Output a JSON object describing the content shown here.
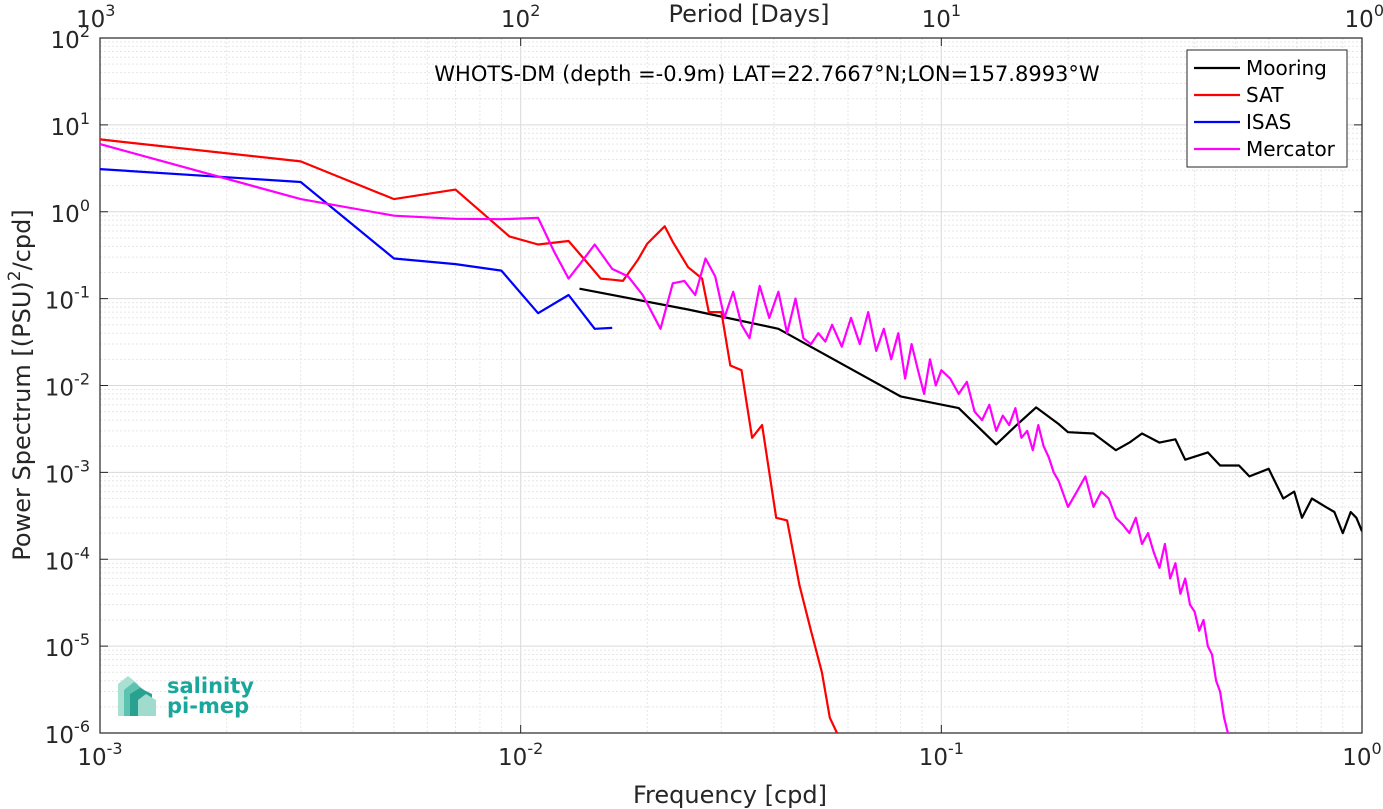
{
  "chart_data": {
    "type": "line",
    "title": "WHOTS-DM (depth =-0.9m) LAT=22.7667°N;LON=157.8993°W",
    "xlabel": "Frequency [cpd]",
    "ylabel_parts": [
      "Power Spectrum [(PSU)",
      "2",
      "/cpd]"
    ],
    "top_xlabel": "Period [Days]",
    "xscale": "log",
    "yscale": "log",
    "xlim": [
      0.001,
      1
    ],
    "ylim": [
      1e-06,
      100
    ],
    "grid": true,
    "legend_position": "top-right",
    "x_ticks": [
      {
        "base": "10",
        "exp": "-3",
        "value": 0.001
      },
      {
        "base": "10",
        "exp": "-2",
        "value": 0.01
      },
      {
        "base": "10",
        "exp": "-1",
        "value": 0.1
      },
      {
        "base": "10",
        "exp": "0",
        "value": 1
      }
    ],
    "top_ticks": [
      {
        "base": "10",
        "exp": "3",
        "value": 0.001
      },
      {
        "base": "10",
        "exp": "2",
        "value": 0.01
      },
      {
        "base": "10",
        "exp": "1",
        "value": 0.1
      },
      {
        "base": "10",
        "exp": "0",
        "value": 1
      }
    ],
    "y_ticks": [
      {
        "base": "10",
        "exp": "2",
        "value": 100
      },
      {
        "base": "10",
        "exp": "1",
        "value": 10
      },
      {
        "base": "10",
        "exp": "0",
        "value": 1
      },
      {
        "base": "10",
        "exp": "-1",
        "value": 0.1
      },
      {
        "base": "10",
        "exp": "-2",
        "value": 0.01
      },
      {
        "base": "10",
        "exp": "-3",
        "value": 0.001
      },
      {
        "base": "10",
        "exp": "-4",
        "value": 0.0001
      },
      {
        "base": "10",
        "exp": "-5",
        "value": 1e-05
      },
      {
        "base": "10",
        "exp": "-6",
        "value": 1e-06
      }
    ],
    "series": [
      {
        "name": "Mooring",
        "color": "#000000",
        "x": [
          0.0138,
          0.025,
          0.041,
          0.08,
          0.11,
          0.135,
          0.15,
          0.168,
          0.19,
          0.2,
          0.23,
          0.26,
          0.28,
          0.3,
          0.33,
          0.36,
          0.38,
          0.43,
          0.46,
          0.51,
          0.54,
          0.6,
          0.65,
          0.69,
          0.72,
          0.76,
          0.82,
          0.86,
          0.9,
          0.94,
          0.97,
          1.0
        ],
        "y": [
          0.13,
          0.075,
          0.045,
          0.0075,
          0.0055,
          0.0021,
          0.0034,
          0.0056,
          0.0036,
          0.0029,
          0.0028,
          0.0018,
          0.0022,
          0.0028,
          0.0022,
          0.0024,
          0.0014,
          0.0017,
          0.0012,
          0.0012,
          0.0009,
          0.0011,
          0.0005,
          0.0006,
          0.0003,
          0.0005,
          0.0004,
          0.00035,
          0.0002,
          0.00035,
          0.0003,
          0.00021
        ]
      },
      {
        "name": "SAT",
        "color": "#ff0000",
        "x": [
          0.001,
          0.003,
          0.005,
          0.007,
          0.0094,
          0.011,
          0.013,
          0.0145,
          0.0155,
          0.0165,
          0.0175,
          0.019,
          0.02,
          0.022,
          0.023,
          0.025,
          0.027,
          0.028,
          0.03,
          0.0315,
          0.0335,
          0.0355,
          0.0375,
          0.0405,
          0.043,
          0.046,
          0.049,
          0.052,
          0.0543,
          0.0565
        ],
        "y": [
          6.8,
          3.8,
          1.4,
          1.8,
          0.52,
          0.42,
          0.46,
          0.25,
          0.17,
          0.165,
          0.16,
          0.28,
          0.43,
          0.68,
          0.45,
          0.23,
          0.17,
          0.07,
          0.07,
          0.017,
          0.015,
          0.0025,
          0.0035,
          0.0003,
          0.00028,
          5e-05,
          1.5e-05,
          5e-06,
          1.5e-06,
          1e-06
        ]
      },
      {
        "name": "ISAS",
        "color": "#0000ff",
        "x": [
          0.001,
          0.003,
          0.005,
          0.007,
          0.009,
          0.011,
          0.013,
          0.015,
          0.0165
        ],
        "y": [
          3.1,
          2.2,
          0.29,
          0.25,
          0.21,
          0.068,
          0.11,
          0.045,
          0.046
        ]
      },
      {
        "name": "Mercator",
        "color": "#ff00ff",
        "x": [
          0.001,
          0.003,
          0.005,
          0.007,
          0.009,
          0.011,
          0.012,
          0.013,
          0.014,
          0.015,
          0.0165,
          0.018,
          0.0195,
          0.0215,
          0.023,
          0.0245,
          0.026,
          0.0275,
          0.029,
          0.0305,
          0.032,
          0.0335,
          0.035,
          0.037,
          0.039,
          0.041,
          0.043,
          0.045,
          0.047,
          0.049,
          0.051,
          0.053,
          0.055,
          0.058,
          0.061,
          0.064,
          0.067,
          0.07,
          0.073,
          0.076,
          0.079,
          0.082,
          0.085,
          0.088,
          0.091,
          0.094,
          0.097,
          0.1,
          0.105,
          0.11,
          0.115,
          0.12,
          0.125,
          0.13,
          0.135,
          0.14,
          0.145,
          0.15,
          0.155,
          0.16,
          0.165,
          0.17,
          0.175,
          0.18,
          0.185,
          0.19,
          0.2,
          0.21,
          0.22,
          0.23,
          0.24,
          0.25,
          0.26,
          0.27,
          0.28,
          0.29,
          0.3,
          0.31,
          0.32,
          0.33,
          0.34,
          0.35,
          0.36,
          0.37,
          0.38,
          0.39,
          0.4,
          0.41,
          0.42,
          0.43,
          0.44,
          0.45,
          0.46,
          0.47,
          0.48
        ],
        "y": [
          6.0,
          1.4,
          0.9,
          0.83,
          0.82,
          0.85,
          0.35,
          0.17,
          0.27,
          0.42,
          0.22,
          0.18,
          0.11,
          0.045,
          0.15,
          0.16,
          0.11,
          0.29,
          0.18,
          0.06,
          0.12,
          0.05,
          0.035,
          0.14,
          0.06,
          0.12,
          0.04,
          0.1,
          0.035,
          0.03,
          0.04,
          0.032,
          0.05,
          0.028,
          0.06,
          0.03,
          0.07,
          0.025,
          0.045,
          0.02,
          0.04,
          0.012,
          0.03,
          0.015,
          0.008,
          0.02,
          0.01,
          0.015,
          0.012,
          0.008,
          0.011,
          0.005,
          0.004,
          0.006,
          0.003,
          0.0045,
          0.0035,
          0.0055,
          0.0025,
          0.003,
          0.0018,
          0.0035,
          0.002,
          0.0015,
          0.001,
          0.0008,
          0.0004,
          0.0006,
          0.0009,
          0.0004,
          0.0006,
          0.0005,
          0.0003,
          0.00025,
          0.0002,
          0.0003,
          0.00015,
          0.0002,
          0.00012,
          8e-05,
          0.00015,
          6e-05,
          9e-05,
          4e-05,
          6e-05,
          3e-05,
          2.5e-05,
          1.5e-05,
          2e-05,
          1e-05,
          8e-06,
          4e-06,
          3e-06,
          1.5e-06,
          1e-06
        ]
      }
    ]
  },
  "logo": {
    "line1": "salinity",
    "line2": "pi-mep"
  }
}
